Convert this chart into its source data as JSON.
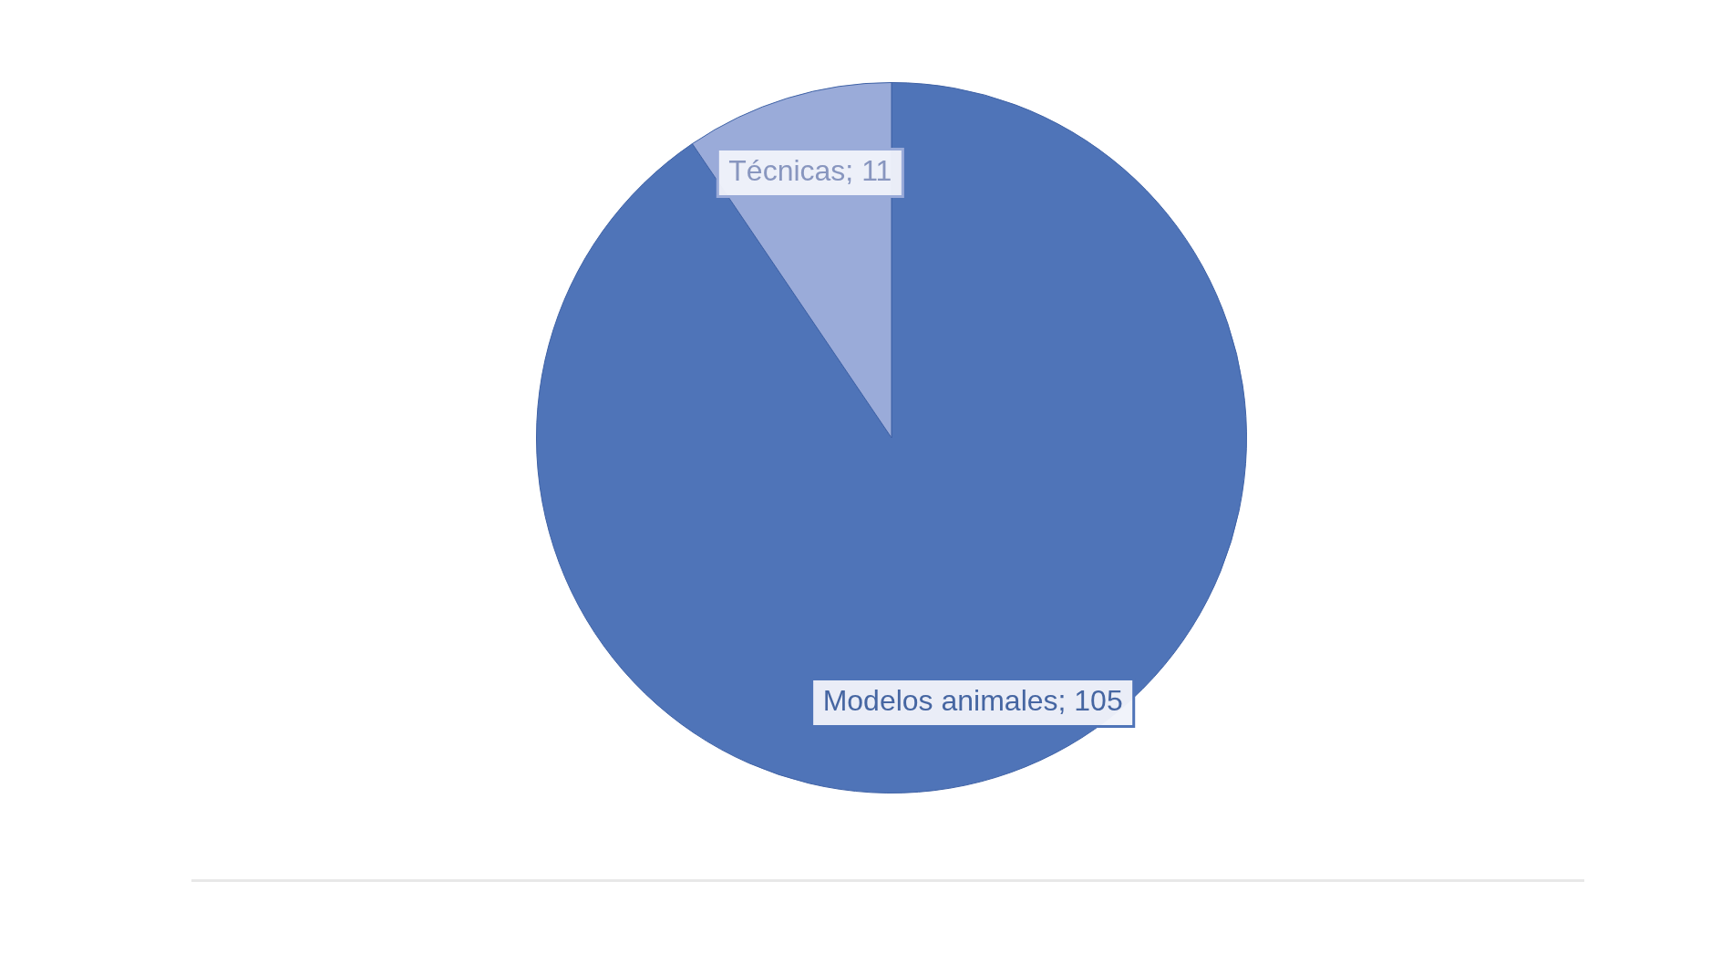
{
  "chart_data": {
    "type": "pie",
    "categories": [
      "Modelos animales",
      "Técnicas"
    ],
    "values": [
      105,
      11
    ],
    "colors": [
      "#4f74b8",
      "#9aabd9"
    ],
    "value_labels": [
      "; 105",
      "; 11"
    ],
    "legend": false
  }
}
